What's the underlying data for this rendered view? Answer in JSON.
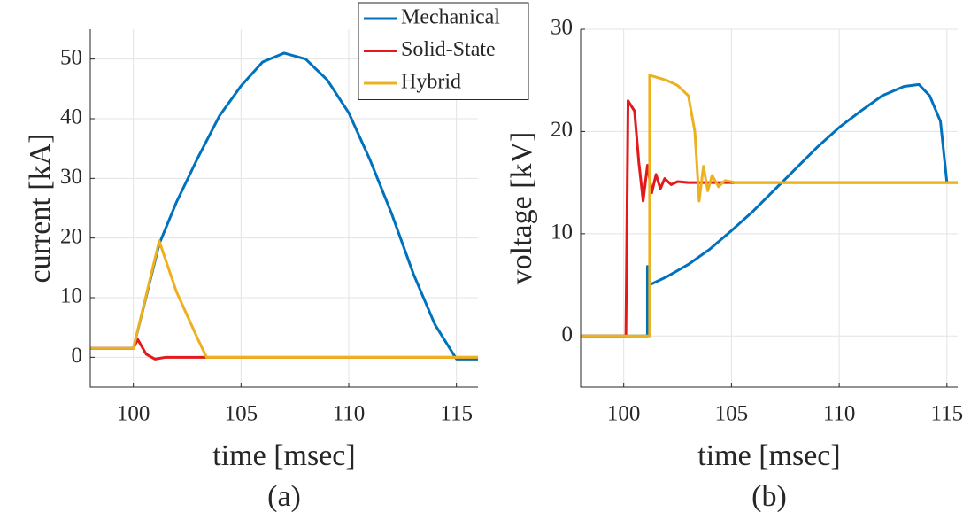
{
  "chart_data": [
    {
      "type": "line",
      "caption": "(a)",
      "xlabel": "time [msec]",
      "ylabel": "current [kA]",
      "xlim": [
        98,
        116
      ],
      "ylim": [
        -5,
        55
      ],
      "xticks": [
        100,
        105,
        110,
        115
      ],
      "yticks": [
        0,
        10,
        20,
        30,
        40,
        50
      ],
      "grid": true,
      "legend": "upper right",
      "series": [
        {
          "name": "Mechanical",
          "color": "#0072bd",
          "x": [
            98,
            100,
            101.2,
            102,
            103,
            104,
            105,
            106,
            107,
            108,
            109,
            110,
            111,
            112,
            113,
            114,
            115,
            116
          ],
          "values": [
            1.5,
            1.5,
            19,
            26,
            33.5,
            40.5,
            45.5,
            49.5,
            51,
            50,
            46.5,
            41,
            33,
            24,
            14,
            5.5,
            -0.3,
            -0.3
          ]
        },
        {
          "name": "Solid-State",
          "color": "#e3191b",
          "x": [
            98,
            100,
            100.2,
            100.6,
            101,
            101.5,
            103,
            116
          ],
          "values": [
            1.5,
            1.5,
            3,
            0.5,
            -0.3,
            0,
            0,
            0
          ]
        },
        {
          "name": "Hybrid",
          "color": "#edb120",
          "x": [
            98,
            100,
            101.2,
            102,
            103,
            103.4,
            116
          ],
          "values": [
            1.5,
            1.5,
            19.5,
            11,
            3,
            0,
            0
          ]
        }
      ]
    },
    {
      "type": "line",
      "caption": "(b)",
      "xlabel": "time [msec]",
      "ylabel": "voltage [kV]",
      "xlim": [
        98,
        115.5
      ],
      "ylim": [
        -5,
        30
      ],
      "xticks": [
        100,
        105,
        110,
        115
      ],
      "yticks": [
        0,
        10,
        20,
        30
      ],
      "grid": true,
      "legend": false,
      "series": [
        {
          "name": "Mechanical",
          "color": "#0072bd",
          "x": [
            98,
            101.1,
            101.1,
            101.2,
            102,
            103,
            104,
            105,
            106,
            107,
            108,
            109,
            110,
            111,
            112,
            113,
            113.7,
            114.2,
            114.7,
            115
          ],
          "values": [
            0,
            0,
            6.8,
            5,
            5.8,
            7,
            8.5,
            10.3,
            12.2,
            14.3,
            16.4,
            18.5,
            20.4,
            22,
            23.5,
            24.4,
            24.6,
            23.5,
            21,
            15
          ]
        },
        {
          "name": "Solid-State",
          "color": "#e3191b",
          "x": [
            98,
            100.1,
            100.2,
            100.5,
            100.7,
            100.9,
            101.1,
            101.3,
            101.5,
            101.7,
            101.9,
            102.2,
            102.5,
            103,
            115.5
          ],
          "values": [
            0,
            0,
            23,
            22,
            17,
            13.2,
            16.7,
            14,
            15.8,
            14.4,
            15.4,
            14.8,
            15.1,
            15,
            15
          ]
        },
        {
          "name": "Hybrid",
          "color": "#edb120",
          "x": [
            98,
            101.2,
            101.2,
            102,
            102.5,
            103,
            103.3,
            103.5,
            103.7,
            103.9,
            104.1,
            104.4,
            104.7,
            105.2,
            115.5
          ],
          "values": [
            0,
            0,
            25.5,
            25,
            24.5,
            23.5,
            20,
            13.2,
            16.6,
            14.2,
            15.7,
            14.6,
            15.2,
            15,
            15
          ]
        }
      ]
    }
  ]
}
